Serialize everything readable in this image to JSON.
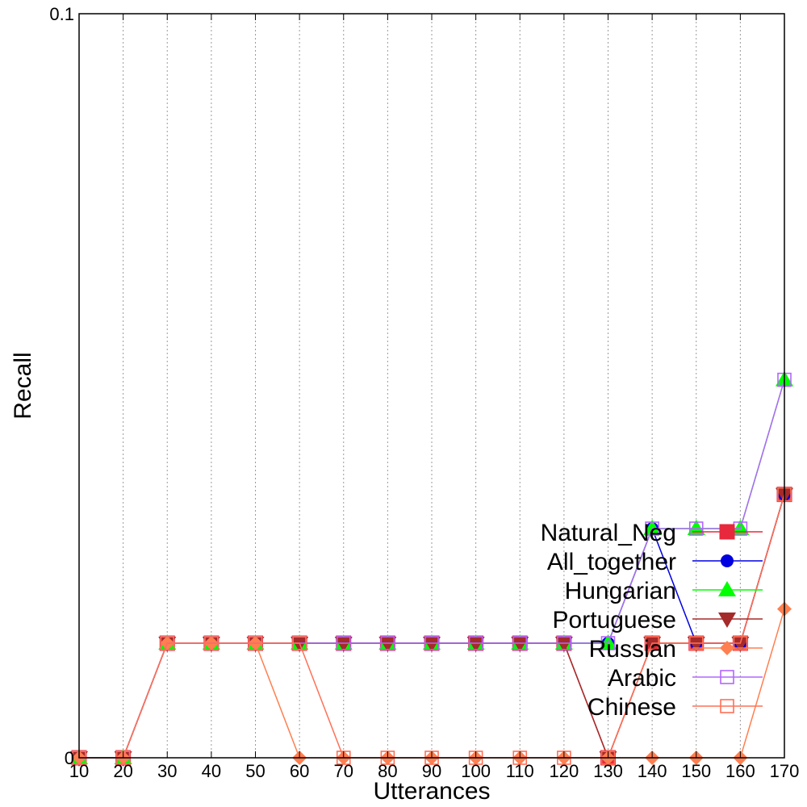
{
  "chart_data": {
    "type": "line",
    "title": "",
    "xlabel": "Utterances",
    "ylabel": "Recall",
    "x": [
      10,
      20,
      30,
      40,
      50,
      60,
      70,
      80,
      90,
      100,
      110,
      120,
      130,
      140,
      150,
      160,
      170
    ],
    "xlim": [
      10,
      170
    ],
    "ylim": [
      0,
      0.1
    ],
    "y_tick_labels": [
      "0",
      "0.1"
    ],
    "grid": "vertical dotted",
    "legend_placement": "bottom-right",
    "series": [
      {
        "name": "Natural_Neg",
        "color": "#e8283c",
        "marker": "filled-square",
        "values": [
          0,
          0,
          0.0154,
          0.0154,
          0.0154,
          0.0154,
          0.0154,
          0.0154,
          0.0154,
          0.0154,
          0.0154,
          0.0154,
          0,
          0.0154,
          0.0154,
          0.0154,
          0.0354
        ]
      },
      {
        "name": "All_together",
        "color": "#0000e0",
        "marker": "filled-circle",
        "values": [
          0,
          0,
          0.0154,
          0.0154,
          0.0154,
          0.0154,
          0.0154,
          0.0154,
          0.0154,
          0.0154,
          0.0154,
          0.0154,
          0.0154,
          0.0308,
          0.0154,
          0.0154,
          0.0354
        ]
      },
      {
        "name": "Hungarian",
        "color": "#00ff00",
        "marker": "filled-triangle-up",
        "values": [
          0,
          0,
          0.0154,
          0.0154,
          0.0154,
          0.0154,
          0.0154,
          0.0154,
          0.0154,
          0.0154,
          0.0154,
          0.0154,
          0.0154,
          0.0308,
          0.0308,
          0.0308,
          0.0508
        ]
      },
      {
        "name": "Portuguese",
        "color": "#a52a2a",
        "marker": "filled-triangle-down",
        "values": [
          0,
          0,
          0.0154,
          0.0154,
          0.0154,
          0.0154,
          0.0154,
          0.0154,
          0.0154,
          0.0154,
          0.0154,
          0.0154,
          0,
          0.0154,
          0.0154,
          0.0154,
          0.0354
        ]
      },
      {
        "name": "Russian",
        "color": "#ff7f50",
        "marker": "filled-diamond",
        "values": [
          0,
          0,
          0.0154,
          0.0154,
          0.0154,
          0,
          0,
          0,
          0,
          0,
          0,
          0,
          0,
          0,
          0,
          0,
          0.02
        ]
      },
      {
        "name": "Arabic",
        "color": "#b266ff",
        "marker": "open-square",
        "values": [
          0,
          0,
          0.0154,
          0.0154,
          0.0154,
          0.0154,
          0.0154,
          0.0154,
          0.0154,
          0.0154,
          0.0154,
          0.0154,
          0.0154,
          0.0308,
          0.0308,
          0.0308,
          0.0508
        ]
      },
      {
        "name": "Chinese",
        "color": "#ff7056",
        "marker": "open-square",
        "values": [
          0,
          0,
          0.0154,
          0.0154,
          0.0154,
          0.0154,
          0,
          0,
          0,
          0,
          0,
          0,
          0,
          0.0154,
          0.0154,
          0.0154,
          0.0354
        ]
      }
    ]
  }
}
